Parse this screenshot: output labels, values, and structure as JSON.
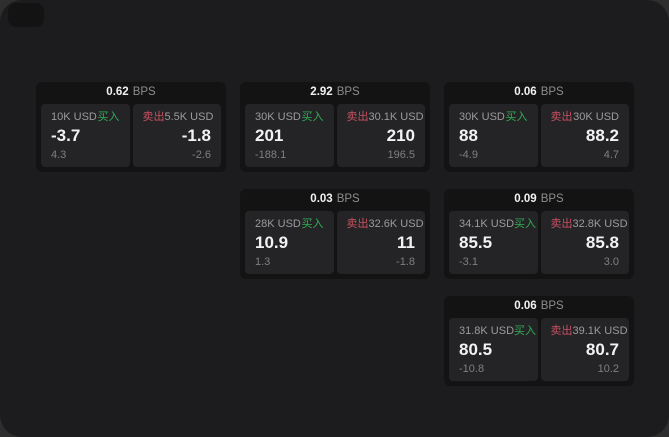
{
  "labels": {
    "bps": "BPS",
    "buy": "买入",
    "sell": "卖出"
  },
  "colors": {
    "buy_green": "#32ad55",
    "sell_red": "#c8505f",
    "surface": "#1c1c1e",
    "card": "#131313",
    "panel": "#242427",
    "price_text": "#f2f2f3",
    "muted_text": "#9b9b9b"
  },
  "cards": [
    {
      "bps_value": "0.62",
      "buy": {
        "size": "10K USD",
        "price": "-3.7",
        "delta": "4.3"
      },
      "sell": {
        "size": "5.5K USD",
        "price": "-1.8",
        "delta": "-2.6"
      }
    },
    {
      "bps_value": "2.92",
      "buy": {
        "size": "30K USD",
        "price": "201",
        "delta": "-188.1"
      },
      "sell": {
        "size": "30.1K USD",
        "price": "210",
        "delta": "196.5"
      }
    },
    {
      "bps_value": "0.06",
      "buy": {
        "size": "30K USD",
        "price": "88",
        "delta": "-4.9"
      },
      "sell": {
        "size": "30K USD",
        "price": "88.2",
        "delta": "4.7"
      }
    },
    {
      "bps_value": "0.03",
      "buy": {
        "size": "28K USD",
        "price": "10.9",
        "delta": "1.3"
      },
      "sell": {
        "size": "32.6K USD",
        "price": "11",
        "delta": "-1.8"
      }
    },
    {
      "bps_value": "0.09",
      "buy": {
        "size": "34.1K USD",
        "price": "85.5",
        "delta": "-3.1"
      },
      "sell": {
        "size": "32.8K USD",
        "price": "85.8",
        "delta": "3.0"
      }
    },
    {
      "bps_value": "0.06",
      "buy": {
        "size": "31.8K USD",
        "price": "80.5",
        "delta": "-10.8"
      },
      "sell": {
        "size": "39.1K USD",
        "price": "80.7",
        "delta": "10.2"
      }
    }
  ]
}
